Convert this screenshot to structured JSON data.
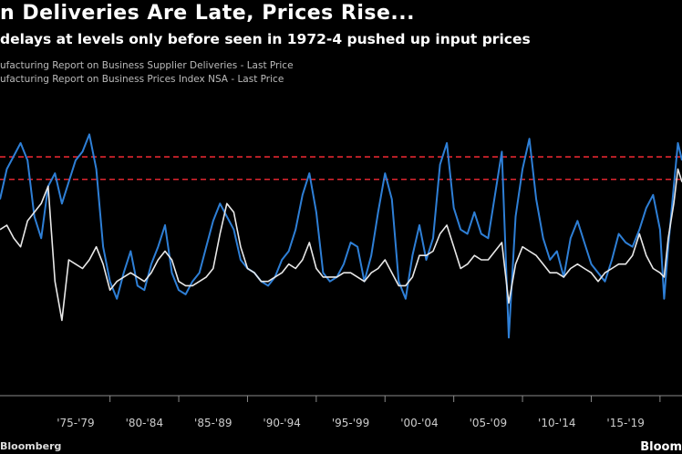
{
  "title": "n Deliveries Are Late, Prices Rise...",
  "subtitle": " delays at levels only before seen in 1972-4 pushed up input prices",
  "source": "Bloomberg",
  "logo": "Bloom",
  "colors": {
    "blue": "#2e7fd6",
    "white": "#e8e8e8",
    "red": "#e0262f",
    "axis": "#8a8a8a"
  },
  "chart_data": {
    "type": "line",
    "xlabel": "",
    "ylabel": "",
    "x_start": 1972.0,
    "x_end": 2021.6,
    "ylim": [
      24,
      94
    ],
    "grid": false,
    "legend": "top-left",
    "tick_labels": [
      "'75-'79",
      "'80-'84",
      "'85-'89",
      "'90-'94",
      "'95-'99",
      "'00-'04",
      "'05-'09",
      "'10-'14",
      "'15-'19"
    ],
    "reference_lines": [
      78.8,
      73.6
    ],
    "series": [
      {
        "name": "ufacturing Report on Business Supplier Deliveries - Last Price",
        "color": "#2e7fd6",
        "x": [
          1972.0,
          1972.5,
          1973.0,
          1973.5,
          1974.0,
          1974.5,
          1975.0,
          1975.5,
          1976.0,
          1976.5,
          1977.0,
          1977.5,
          1978.0,
          1978.5,
          1979.0,
          1979.5,
          1980.0,
          1980.5,
          1981.0,
          1981.5,
          1982.0,
          1982.5,
          1983.0,
          1983.5,
          1984.0,
          1984.5,
          1985.0,
          1985.5,
          1986.0,
          1986.5,
          1987.0,
          1987.5,
          1988.0,
          1988.5,
          1989.0,
          1989.5,
          1990.0,
          1990.5,
          1991.0,
          1991.5,
          1992.0,
          1992.5,
          1993.0,
          1993.5,
          1994.0,
          1994.5,
          1995.0,
          1995.5,
          1996.0,
          1996.5,
          1997.0,
          1997.5,
          1998.0,
          1998.5,
          1999.0,
          1999.5,
          2000.0,
          2000.5,
          2001.0,
          2001.5,
          2002.0,
          2002.5,
          2003.0,
          2003.5,
          2004.0,
          2004.5,
          2005.0,
          2005.5,
          2006.0,
          2006.5,
          2007.0,
          2007.5,
          2008.0,
          2008.5,
          2009.0,
          2009.5,
          2010.0,
          2010.5,
          2011.0,
          2011.5,
          2012.0,
          2012.5,
          2013.0,
          2013.5,
          2014.0,
          2014.5,
          2015.0,
          2015.5,
          2016.0,
          2016.5,
          2017.0,
          2017.5,
          2018.0,
          2018.5,
          2019.0,
          2019.5,
          2020.0,
          2020.3,
          2020.6,
          2021.0,
          2021.3,
          2021.6
        ],
        "values": [
          69,
          76,
          79,
          82,
          78,
          65,
          60,
          72,
          75,
          68,
          73,
          78,
          80,
          84,
          76,
          58,
          50,
          46,
          52,
          57,
          49,
          48,
          54,
          58,
          63,
          52,
          48,
          47,
          50,
          52,
          58,
          64,
          68,
          65,
          62,
          55,
          53,
          52,
          50,
          49,
          51,
          55,
          57,
          62,
          70,
          75,
          66,
          52,
          50,
          51,
          54,
          59,
          58,
          50,
          56,
          66,
          75,
          69,
          50,
          46,
          56,
          63,
          55,
          60,
          77,
          82,
          67,
          62,
          61,
          66,
          61,
          60,
          70,
          80,
          37,
          65,
          76,
          83,
          69,
          60,
          55,
          57,
          51,
          60,
          64,
          59,
          54,
          52,
          50,
          55,
          61,
          59,
          58,
          62,
          67,
          70,
          62,
          46,
          58,
          72,
          82,
          78
        ]
      },
      {
        "name": "ufacturing Report on Business Prices Index NSA - Last Price",
        "color": "#e8e8e8",
        "x": [
          1972.0,
          1972.5,
          1973.0,
          1973.5,
          1974.0,
          1974.5,
          1975.0,
          1975.5,
          1976.0,
          1976.5,
          1977.0,
          1977.5,
          1978.0,
          1978.5,
          1979.0,
          1979.5,
          1980.0,
          1980.5,
          1981.0,
          1981.5,
          1982.0,
          1982.5,
          1983.0,
          1983.5,
          1984.0,
          1984.5,
          1985.0,
          1985.5,
          1986.0,
          1986.5,
          1987.0,
          1987.5,
          1988.0,
          1988.5,
          1989.0,
          1989.5,
          1990.0,
          1990.5,
          1991.0,
          1991.5,
          1992.0,
          1992.5,
          1993.0,
          1993.5,
          1994.0,
          1994.5,
          1995.0,
          1995.5,
          1996.0,
          1996.5,
          1997.0,
          1997.5,
          1998.0,
          1998.5,
          1999.0,
          1999.5,
          2000.0,
          2000.5,
          2001.0,
          2001.5,
          2002.0,
          2002.5,
          2003.0,
          2003.5,
          2004.0,
          2004.5,
          2005.0,
          2005.5,
          2006.0,
          2006.5,
          2007.0,
          2007.5,
          2008.0,
          2008.5,
          2009.0,
          2009.5,
          2010.0,
          2010.5,
          2011.0,
          2011.5,
          2012.0,
          2012.5,
          2013.0,
          2013.5,
          2014.0,
          2014.5,
          2015.0,
          2015.5,
          2016.0,
          2016.5,
          2017.0,
          2017.5,
          2018.0,
          2018.5,
          2019.0,
          2019.5,
          2020.0,
          2020.3,
          2020.6,
          2021.0,
          2021.3,
          2021.6
        ],
        "values": [
          62,
          63,
          60,
          58,
          64,
          66,
          68,
          72,
          50,
          41,
          55,
          54,
          53,
          55,
          58,
          54,
          48,
          50,
          51,
          52,
          51,
          50,
          52,
          55,
          57,
          55,
          50,
          49,
          49,
          50,
          51,
          53,
          61,
          68,
          66,
          58,
          53,
          52,
          50,
          50,
          51,
          52,
          54,
          53,
          55,
          59,
          53,
          51,
          51,
          51,
          52,
          52,
          51,
          50,
          52,
          53,
          55,
          52,
          49,
          49,
          51,
          56,
          56,
          57,
          61,
          63,
          58,
          53,
          54,
          56,
          55,
          55,
          57,
          59,
          45,
          54,
          58,
          57,
          56,
          54,
          52,
          52,
          51,
          53,
          54,
          53,
          52,
          50,
          52,
          53,
          54,
          54,
          56,
          61,
          56,
          53,
          52,
          51,
          60,
          68,
          76,
          73
        ]
      }
    ]
  }
}
